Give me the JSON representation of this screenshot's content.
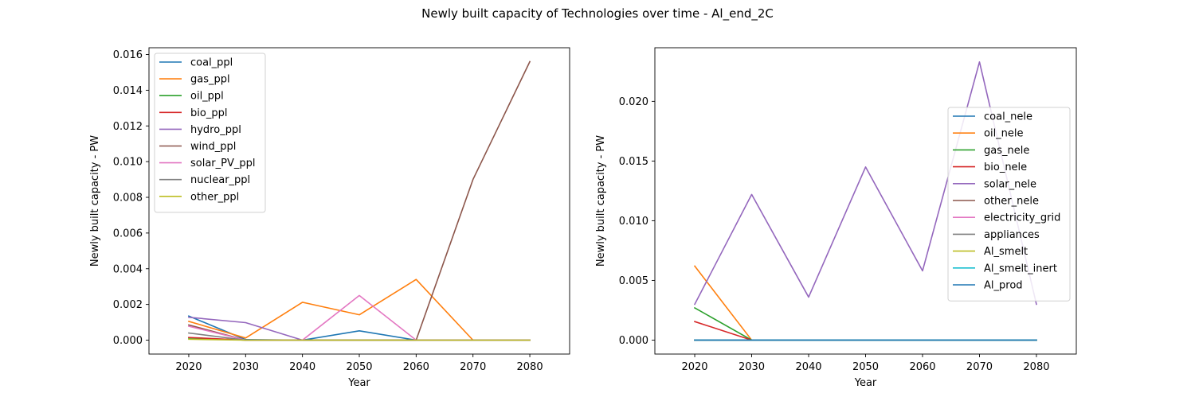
{
  "suptitle": "Newly built capacity of Technologies over time - Al_end_2C",
  "chart_data": [
    {
      "type": "line",
      "xlabel": "Year",
      "ylabel": "Newly built capacity - PW",
      "x": [
        2020,
        2030,
        2040,
        2050,
        2060,
        2070,
        2080
      ],
      "xlim": [
        2013,
        2087
      ],
      "ylim": [
        -0.00078,
        0.01638
      ],
      "yticks": [
        0.0,
        0.002,
        0.004,
        0.006,
        0.008,
        0.01,
        0.012,
        0.014,
        0.016
      ],
      "ytick_labels": [
        "0.000",
        "0.002",
        "0.004",
        "0.006",
        "0.008",
        "0.010",
        "0.012",
        "0.014",
        "0.016"
      ],
      "xtick_labels": [
        "2020",
        "2030",
        "2040",
        "2050",
        "2060",
        "2070",
        "2080"
      ],
      "legend_position": "upper-left",
      "series": [
        {
          "name": "coal_ppl",
          "color": "#1f77b4",
          "values": [
            0.00135,
            3e-05,
            0.0,
            0.00052,
            0.0,
            0.0,
            0.0
          ]
        },
        {
          "name": "gas_ppl",
          "color": "#ff7f0e",
          "values": [
            0.00105,
            0.00012,
            0.00212,
            0.00142,
            0.0034,
            0.0,
            0.0
          ]
        },
        {
          "name": "oil_ppl",
          "color": "#2ca02c",
          "values": [
            0.00012,
            0.0,
            0.0,
            0.0,
            0.0,
            0.0,
            0.0
          ]
        },
        {
          "name": "bio_ppl",
          "color": "#d62728",
          "values": [
            0.00015,
            0.0,
            0.0,
            0.0,
            0.0,
            0.0,
            0.0
          ]
        },
        {
          "name": "hydro_ppl",
          "color": "#9467bd",
          "values": [
            0.00128,
            0.00098,
            0.0,
            0.0,
            0.0,
            0.0,
            0.0
          ]
        },
        {
          "name": "wind_ppl",
          "color": "#8c564b",
          "values": [
            0.00085,
            0.0,
            0.0,
            0.0,
            0.0,
            0.009,
            0.0156
          ]
        },
        {
          "name": "solar_PV_ppl",
          "color": "#e377c2",
          "values": [
            0.00078,
            0.0,
            0.0,
            0.0025,
            0.0,
            0.0,
            0.0
          ]
        },
        {
          "name": "nuclear_ppl",
          "color": "#7f7f7f",
          "values": [
            0.0004,
            0.0,
            0.0,
            0.0,
            0.0,
            0.0,
            0.0
          ]
        },
        {
          "name": "other_ppl",
          "color": "#bcbd22",
          "values": [
            5e-05,
            0.0,
            0.0,
            0.0,
            0.0,
            0.0,
            0.0
          ]
        }
      ]
    },
    {
      "type": "line",
      "xlabel": "Year",
      "ylabel": "Newly built capacity - PW",
      "x": [
        2020,
        2030,
        2040,
        2050,
        2060,
        2070,
        2080
      ],
      "xlim": [
        2013,
        2087
      ],
      "ylim": [
        -0.00117,
        0.02449
      ],
      "yticks": [
        0.0,
        0.005,
        0.01,
        0.015,
        0.02
      ],
      "ytick_labels": [
        "0.000",
        "0.005",
        "0.010",
        "0.015",
        "0.020"
      ],
      "xtick_labels": [
        "2020",
        "2030",
        "2040",
        "2050",
        "2060",
        "2070",
        "2080"
      ],
      "legend_position": "center-right",
      "series": [
        {
          "name": "coal_nele",
          "color": "#1f77b4",
          "values": [
            0.0,
            0.0,
            0.0,
            0.0,
            0.0,
            0.0,
            0.0
          ]
        },
        {
          "name": "oil_nele",
          "color": "#ff7f0e",
          "values": [
            0.0062,
            0.0,
            0.0,
            0.0,
            0.0,
            0.0,
            0.0
          ]
        },
        {
          "name": "gas_nele",
          "color": "#2ca02c",
          "values": [
            0.0027,
            0.0,
            0.0,
            0.0,
            0.0,
            0.0,
            0.0
          ]
        },
        {
          "name": "bio_nele",
          "color": "#d62728",
          "values": [
            0.00155,
            0.0,
            0.0,
            0.0,
            0.0,
            0.0,
            0.0
          ]
        },
        {
          "name": "solar_nele",
          "color": "#9467bd",
          "values": [
            0.003,
            0.0122,
            0.0036,
            0.0145,
            0.0058,
            0.0233,
            0.003
          ]
        },
        {
          "name": "other_nele",
          "color": "#8c564b",
          "values": [
            0.0,
            0.0,
            0.0,
            0.0,
            0.0,
            0.0,
            0.0
          ]
        },
        {
          "name": "electricity_grid",
          "color": "#e377c2",
          "values": [
            0.0,
            0.0,
            0.0,
            0.0,
            0.0,
            0.0,
            0.0
          ]
        },
        {
          "name": "appliances",
          "color": "#7f7f7f",
          "values": [
            0.0,
            0.0,
            0.0,
            0.0,
            0.0,
            0.0,
            0.0
          ]
        },
        {
          "name": "Al_smelt",
          "color": "#bcbd22",
          "values": [
            0.0,
            0.0,
            0.0,
            0.0,
            0.0,
            0.0,
            0.0
          ]
        },
        {
          "name": "Al_smelt_inert",
          "color": "#17becf",
          "values": [
            0.0,
            0.0,
            0.0,
            0.0,
            0.0,
            0.0,
            0.0
          ]
        },
        {
          "name": "Al_prod",
          "color": "#1f77b4",
          "values": [
            0.0,
            0.0,
            0.0,
            0.0,
            0.0,
            0.0,
            0.0
          ]
        }
      ]
    }
  ]
}
